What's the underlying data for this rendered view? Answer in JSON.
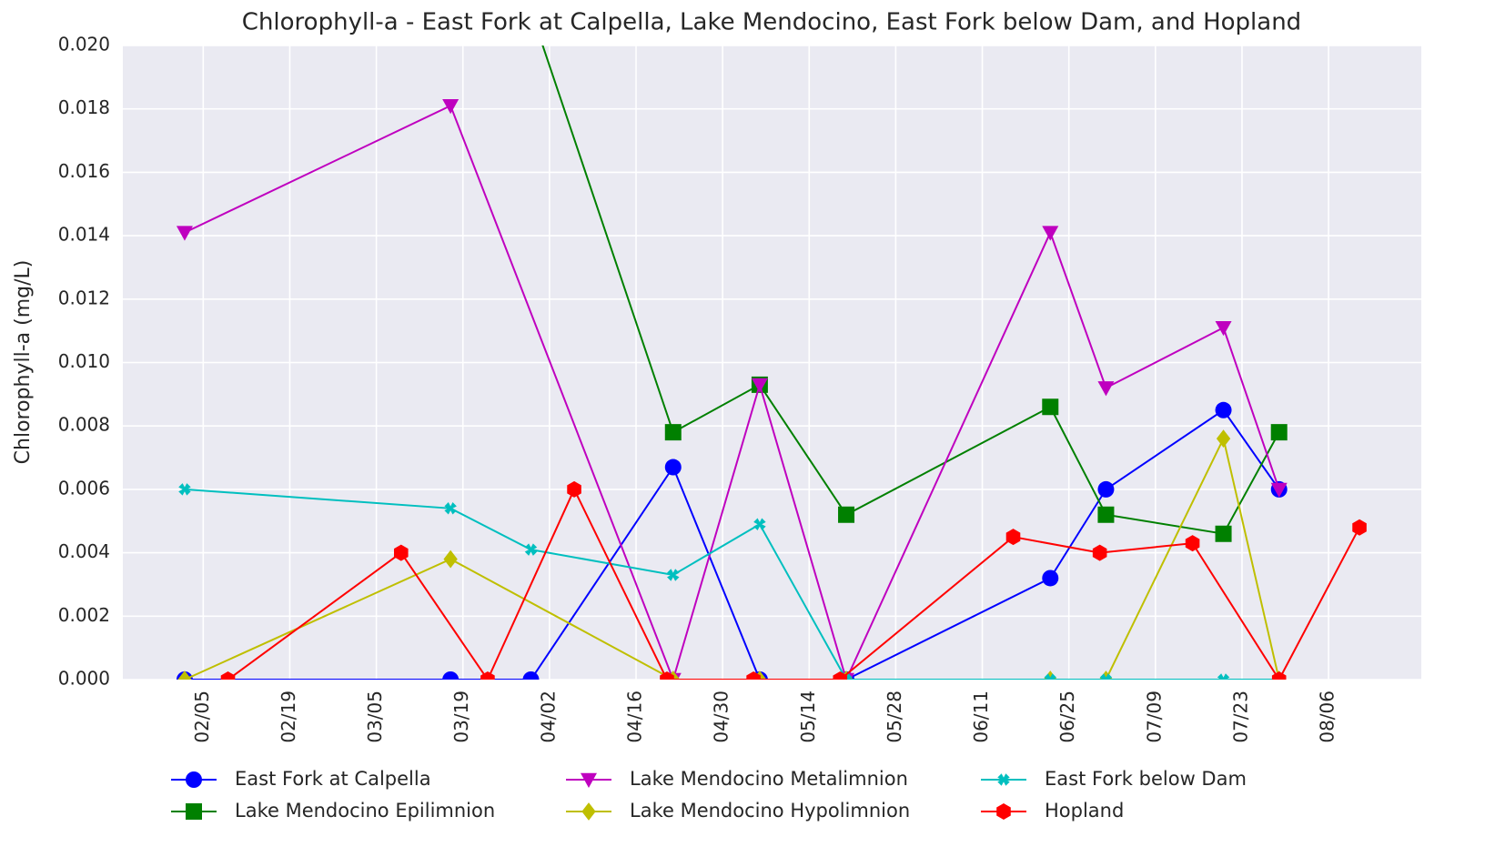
{
  "chart_data": {
    "type": "line",
    "title": "Chlorophyll-a - East Fork at Calpella, Lake Mendocino, East Fork below Dam, and Hopland",
    "y_label": "Chlorophyll-a (mg/L)",
    "xlim": [
      "01/23",
      "08/21"
    ],
    "xticks": [
      "02/05",
      "02/19",
      "03/05",
      "03/19",
      "04/02",
      "04/16",
      "04/30",
      "05/14",
      "05/28",
      "06/11",
      "06/25",
      "07/09",
      "07/23",
      "08/06"
    ],
    "ylim": [
      0,
      0.02
    ],
    "yticks": [
      {
        "value": 0,
        "label": "0.000"
      },
      0.002,
      0.004,
      0.006,
      0.008,
      {
        "value": 0.01,
        "label": "0.010"
      },
      0.012,
      0.014,
      0.016,
      0.018,
      {
        "value": 0.02,
        "label": "0.020"
      }
    ],
    "grid": true,
    "legend": "bottom",
    "series": [
      {
        "name": "East Fork at Calpella",
        "color": "#0000ff",
        "marker": "o",
        "x": [
          "02/02",
          "03/17",
          "03/30",
          "04/22",
          "05/06",
          "05/20",
          "06/22",
          "07/01",
          "07/20",
          "07/29"
        ],
        "values": [
          0,
          0,
          0,
          0.0067,
          0,
          0,
          0.0032,
          0.006,
          0.0085,
          0.006
        ]
      },
      {
        "name": "Lake Mendocino Epilimnion",
        "color": "#008000",
        "marker": "s",
        "x": [
          "03/30",
          "04/22",
          "05/06",
          "05/20",
          "06/22",
          "07/01",
          "07/20",
          "07/29"
        ],
        "values": [
          0.0211,
          0.0078,
          0.0093,
          0.0052,
          0.0086,
          0.0052,
          0.0046,
          0.0078
        ]
      },
      {
        "name": "Lake Mendocino Metalimnion",
        "color": "#bf00bf",
        "marker": "v",
        "x": [
          "02/02",
          "03/17",
          "04/22",
          "05/06",
          "05/20",
          "06/22",
          "07/01",
          "07/20",
          "07/29"
        ],
        "values": [
          0.0141,
          0.0181,
          0,
          0.0093,
          0,
          0.0141,
          0.0092,
          0.0111,
          0.006
        ]
      },
      {
        "name": "Lake Mendocino Hypolimnion",
        "color": "#bfbf00",
        "marker": "D",
        "x": [
          "02/02",
          "03/17",
          "04/22",
          "05/06",
          "05/20",
          "06/22",
          "07/01",
          "07/20",
          "07/29"
        ],
        "values": [
          0,
          0.0038,
          0,
          0,
          0,
          0,
          0,
          0.0076,
          0
        ]
      },
      {
        "name": "East Fork below Dam",
        "color": "#00bfbf",
        "marker": "X",
        "x": [
          "02/02",
          "03/17",
          "03/30",
          "04/22",
          "05/06",
          "05/20",
          "06/22",
          "07/01",
          "07/20",
          "07/29"
        ],
        "values": [
          0.006,
          0.0054,
          0.0041,
          0.0033,
          0.0049,
          0,
          0,
          0,
          0,
          0
        ]
      },
      {
        "name": "Hopland",
        "color": "#ff0000",
        "marker": "h",
        "x": [
          "02/09",
          "03/09",
          "03/23",
          "04/06",
          "04/21",
          "05/05",
          "05/19",
          "06/16",
          "06/30",
          "07/15",
          "07/29",
          "08/11"
        ],
        "values": [
          0,
          0.004,
          0,
          0.006,
          0,
          0,
          0,
          0.0045,
          0.004,
          0.0043,
          0,
          0.0048
        ]
      }
    ]
  }
}
